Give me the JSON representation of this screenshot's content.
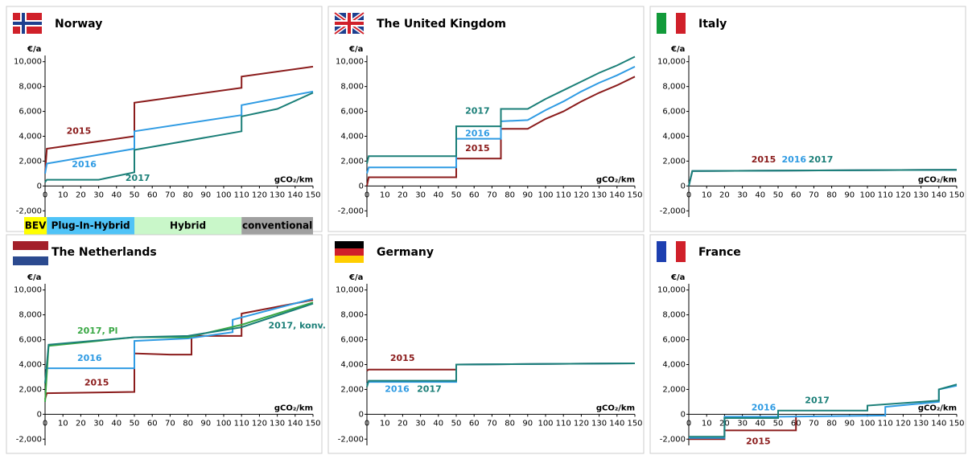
{
  "chart_data": [
    {
      "type": "line",
      "title": "Norway",
      "y_label": "€/a",
      "x_label": "gCO₂/km",
      "xlim": [
        0,
        150
      ],
      "xticks": [
        0,
        10,
        20,
        30,
        40,
        50,
        60,
        70,
        80,
        90,
        100,
        110,
        120,
        130,
        140,
        150
      ],
      "ylim": [
        -2500,
        10500
      ],
      "yticks": [
        {
          "value": -2000,
          "label": "-2,000"
        },
        0,
        {
          "value": 2000,
          "label": "2,000"
        },
        {
          "value": 4000,
          "label": "4,000"
        },
        {
          "value": 6000,
          "label": "6,000"
        },
        {
          "value": 8000,
          "label": "8,000"
        },
        {
          "value": 10000,
          "label": "10,000"
        }
      ],
      "bands": [
        {
          "label": "BEV",
          "from": 0,
          "to": 1,
          "color": "#ffff00"
        },
        {
          "label": "Plug-In-Hybrid",
          "from": 1,
          "to": 50,
          "color": "#4fc3f7"
        },
        {
          "label": "Hybrid",
          "from": 50,
          "to": 110,
          "color": "#c9f7c9"
        },
        {
          "label": "conventional",
          "from": 110,
          "to": 150,
          "color": "#a0a0a0"
        }
      ],
      "series": [
        {
          "name": "2015",
          "color": "#8b1c1c",
          "x": [
            0,
            1,
            50,
            50,
            110,
            110,
            150
          ],
          "values": [
            1000,
            3000,
            4000,
            6700,
            7900,
            8800,
            9600
          ]
        },
        {
          "name": "2016",
          "color": "#2f9be3",
          "x": [
            0,
            1,
            50,
            50,
            110,
            110,
            150
          ],
          "values": [
            1000,
            1800,
            3000,
            4400,
            5700,
            6500,
            7600
          ]
        },
        {
          "name": "2017",
          "color": "#1b7f78",
          "x": [
            0,
            1,
            30,
            50,
            50,
            110,
            110,
            130,
            150
          ],
          "values": [
            300,
            500,
            500,
            1100,
            2900,
            4400,
            5600,
            6200,
            7500
          ]
        }
      ]
    },
    {
      "type": "line",
      "title": "The United Kingdom",
      "y_label": "€/a",
      "x_label": "gCO₂/km",
      "xlim": [
        0,
        150
      ],
      "xticks": [
        0,
        10,
        20,
        30,
        40,
        50,
        60,
        70,
        80,
        90,
        100,
        110,
        120,
        130,
        140,
        150
      ],
      "ylim": [
        -2500,
        10500
      ],
      "yticks": [
        {
          "value": -2000,
          "label": "-2,000"
        },
        0,
        {
          "value": 2000,
          "label": "2,000"
        },
        {
          "value": 4000,
          "label": "4,000"
        },
        {
          "value": 6000,
          "label": "6,000"
        },
        {
          "value": 8000,
          "label": "8,000"
        },
        {
          "value": 10000,
          "label": "10,000"
        }
      ],
      "series": [
        {
          "name": "2015",
          "color": "#8b1c1c",
          "x": [
            0,
            1,
            50,
            50,
            75,
            75,
            90,
            100,
            110,
            120,
            130,
            140,
            150
          ],
          "values": [
            0,
            700,
            700,
            2200,
            2200,
            4600,
            4600,
            5400,
            6000,
            6800,
            7500,
            8100,
            8800
          ]
        },
        {
          "name": "2016",
          "color": "#2f9be3",
          "x": [
            0,
            1,
            50,
            50,
            75,
            75,
            90,
            100,
            110,
            120,
            130,
            140,
            150
          ],
          "values": [
            1000,
            1500,
            1500,
            3800,
            3800,
            5200,
            5300,
            6100,
            6800,
            7600,
            8300,
            8900,
            9600
          ]
        },
        {
          "name": "2017",
          "color": "#1b7f78",
          "x": [
            0,
            1,
            50,
            50,
            75,
            75,
            90,
            100,
            110,
            120,
            130,
            140,
            150
          ],
          "values": [
            1800,
            2400,
            2400,
            4800,
            4800,
            6200,
            6200,
            7000,
            7700,
            8400,
            9100,
            9700,
            10400
          ]
        }
      ]
    },
    {
      "type": "line",
      "title": "Italy",
      "y_label": "€/a",
      "x_label": "gCO₂/km",
      "xlim": [
        0,
        150
      ],
      "xticks": [
        0,
        10,
        20,
        30,
        40,
        50,
        60,
        70,
        80,
        90,
        100,
        110,
        120,
        130,
        140,
        150
      ],
      "ylim": [
        -2500,
        10500
      ],
      "yticks": [
        {
          "value": -2000,
          "label": "-2,000"
        },
        0,
        {
          "value": 2000,
          "label": "2,000"
        },
        {
          "value": 4000,
          "label": "4,000"
        },
        {
          "value": 6000,
          "label": "6,000"
        },
        {
          "value": 8000,
          "label": "8,000"
        },
        {
          "value": 10000,
          "label": "10,000"
        }
      ],
      "series": [
        {
          "name": "2015",
          "color": "#8b1c1c",
          "x": [
            0,
            2,
            150
          ],
          "values": [
            0,
            1200,
            1300
          ]
        },
        {
          "name": "2016",
          "color": "#2f9be3",
          "x": [
            0,
            2,
            150
          ],
          "values": [
            0,
            1200,
            1300
          ]
        },
        {
          "name": "2017",
          "color": "#1b7f78",
          "x": [
            0,
            2,
            150
          ],
          "values": [
            0,
            1200,
            1300
          ]
        }
      ]
    },
    {
      "type": "line",
      "title": "The Netherlands",
      "y_label": "€/a",
      "x_label": "gCO₂/km",
      "xlim": [
        0,
        150
      ],
      "xticks": [
        0,
        10,
        20,
        30,
        40,
        50,
        60,
        70,
        80,
        90,
        100,
        110,
        120,
        130,
        140,
        150
      ],
      "ylim": [
        -2500,
        10500
      ],
      "yticks": [
        {
          "value": -2000,
          "label": "-2,000"
        },
        0,
        {
          "value": 2000,
          "label": "2,000"
        },
        {
          "value": 4000,
          "label": "4,000"
        },
        {
          "value": 6000,
          "label": "6,000"
        },
        {
          "value": 8000,
          "label": "8,000"
        },
        {
          "value": 10000,
          "label": "10,000"
        }
      ],
      "series": [
        {
          "name": "2015",
          "color": "#8b1c1c",
          "x": [
            0,
            1,
            50,
            50,
            70,
            82,
            82,
            110,
            110,
            150
          ],
          "values": [
            1200,
            1700,
            1800,
            4900,
            4800,
            4800,
            6300,
            6300,
            8100,
            9200
          ]
        },
        {
          "name": "2016",
          "color": "#2f9be3",
          "x": [
            0,
            1,
            50,
            50,
            80,
            105,
            105,
            150
          ],
          "values": [
            3700,
            3700,
            3700,
            5900,
            6100,
            6600,
            7600,
            9300
          ]
        },
        {
          "name": "2017, Pl",
          "color": "#3aa845",
          "x": [
            0,
            2,
            50,
            80,
            110,
            150
          ],
          "values": [
            1000,
            5500,
            6200,
            6200,
            7200,
            9000
          ]
        },
        {
          "name": "2017, konv.",
          "color": "#1b7f78",
          "x": [
            0,
            2,
            50,
            80,
            110,
            150
          ],
          "values": [
            2500,
            5600,
            6200,
            6300,
            7000,
            8900
          ]
        }
      ]
    },
    {
      "type": "line",
      "title": "Germany",
      "y_label": "€/a",
      "x_label": "gCO₂/km",
      "xlim": [
        0,
        150
      ],
      "xticks": [
        0,
        10,
        20,
        30,
        40,
        50,
        60,
        70,
        80,
        90,
        100,
        110,
        120,
        130,
        140,
        150
      ],
      "ylim": [
        -2500,
        10500
      ],
      "yticks": [
        {
          "value": -2000,
          "label": "-2,000"
        },
        0,
        {
          "value": 2000,
          "label": "2,000"
        },
        {
          "value": 4000,
          "label": "4,000"
        },
        {
          "value": 6000,
          "label": "6,000"
        },
        {
          "value": 8000,
          "label": "8,000"
        },
        {
          "value": 10000,
          "label": "10,000"
        }
      ],
      "series": [
        {
          "name": "2015",
          "color": "#8b1c1c",
          "x": [
            0,
            1,
            50,
            50,
            150
          ],
          "values": [
            3500,
            3600,
            3600,
            4000,
            4100
          ]
        },
        {
          "name": "2016",
          "color": "#2f9be3",
          "x": [
            0,
            1,
            50,
            50,
            150
          ],
          "values": [
            2400,
            2600,
            2600,
            4000,
            4100
          ]
        },
        {
          "name": "2017",
          "color": "#1b7f78",
          "x": [
            0,
            1,
            50,
            50,
            150
          ],
          "values": [
            2200,
            2700,
            2700,
            4000,
            4100
          ]
        }
      ]
    },
    {
      "type": "line",
      "title": "France",
      "y_label": "€/a",
      "x_label": "gCO₂/km",
      "xlim": [
        0,
        150
      ],
      "xticks": [
        0,
        10,
        20,
        30,
        40,
        50,
        60,
        70,
        80,
        90,
        100,
        110,
        120,
        130,
        140,
        150
      ],
      "ylim": [
        -2500,
        10500
      ],
      "yticks": [
        {
          "value": -2000,
          "label": "-2,000"
        },
        0,
        {
          "value": 2000,
          "label": "2,000"
        },
        {
          "value": 4000,
          "label": "4,000"
        },
        {
          "value": 6000,
          "label": "6,000"
        },
        {
          "value": 8000,
          "label": "8,000"
        },
        {
          "value": 10000,
          "label": "10,000"
        }
      ],
      "series": [
        {
          "name": "2015",
          "color": "#8b1c1c",
          "x": [
            0,
            20,
            20,
            60,
            60
          ],
          "values": [
            -2000,
            -2000,
            -1300,
            -1300,
            -200
          ]
        },
        {
          "name": "2016",
          "color": "#2f9be3",
          "x": [
            0,
            20,
            20,
            50,
            110,
            110,
            140,
            140,
            150
          ],
          "values": [
            -1900,
            -1900,
            -200,
            -200,
            -100,
            600,
            1000,
            2000,
            2300
          ]
        },
        {
          "name": "2017",
          "color": "#1b7f78",
          "x": [
            0,
            20,
            20,
            50,
            50,
            100,
            100,
            140,
            140,
            150
          ],
          "values": [
            -1800,
            -1800,
            -300,
            -300,
            300,
            300,
            700,
            1100,
            2000,
            2400
          ]
        }
      ]
    }
  ]
}
